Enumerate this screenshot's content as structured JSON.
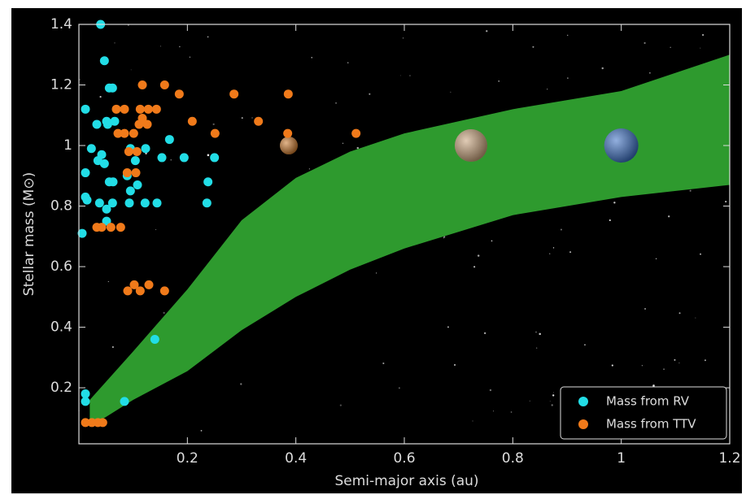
{
  "chart_data": {
    "type": "scatter",
    "xlabel": "Semi-major axis (au)",
    "ylabel": "Stellar mass (M⊙)",
    "xlim": [
      0,
      1.2
    ],
    "ylim": [
      0.015,
      1.4
    ],
    "xticks": [
      0.2,
      0.4,
      0.6,
      0.8,
      1.0,
      1.2
    ],
    "yticks": [
      0.2,
      0.4,
      0.6,
      0.8,
      1.0,
      1.2,
      1.4
    ],
    "legend": "lower right",
    "background": "#000000",
    "habitable_zone": {
      "color": "#2e9a2e",
      "x": [
        0.02,
        0.1,
        0.2,
        0.3,
        0.4,
        0.5,
        0.6,
        0.8,
        1.0,
        1.2
      ],
      "upper": [
        0.16,
        0.32,
        0.525,
        0.753,
        0.893,
        0.98,
        1.04,
        1.12,
        1.18,
        1.3
      ],
      "lower": [
        0.07,
        0.16,
        0.255,
        0.39,
        0.5,
        0.59,
        0.66,
        0.77,
        0.83,
        0.87
      ]
    },
    "planets": {
      "x": [
        0.387,
        0.723,
        1.0
      ],
      "values": [
        1.0,
        1.0,
        1.0
      ],
      "colors": [
        "#c9772a",
        "#c8a27a",
        "#3a6fc4"
      ]
    },
    "series": [
      {
        "name": "Mass from RV",
        "color": "#22dde6",
        "x": [
          0.04,
          0.047,
          0.012,
          0.056,
          0.062,
          0.033,
          0.051,
          0.053,
          0.066,
          0.023,
          0.042,
          0.035,
          0.047,
          0.012,
          0.056,
          0.063,
          0.012,
          0.015,
          0.038,
          0.051,
          0.062,
          0.051,
          0.006,
          0.095,
          0.104,
          0.089,
          0.095,
          0.108,
          0.093,
          0.122,
          0.144,
          0.123,
          0.153,
          0.167,
          0.194,
          0.25,
          0.238,
          0.236,
          0.14,
          0.084,
          0.012,
          0.012
        ],
        "values": [
          1.4,
          1.28,
          1.12,
          1.19,
          1.19,
          1.07,
          1.08,
          1.07,
          1.08,
          0.99,
          0.97,
          0.95,
          0.94,
          0.91,
          0.88,
          0.88,
          0.83,
          0.82,
          0.81,
          0.79,
          0.81,
          0.75,
          0.71,
          0.99,
          0.95,
          0.9,
          0.85,
          0.87,
          0.81,
          0.81,
          0.81,
          0.99,
          0.96,
          1.02,
          0.96,
          0.96,
          0.88,
          0.81,
          0.36,
          0.155,
          0.18,
          0.155
        ]
      },
      {
        "name": "Mass from TTV",
        "color": "#f07a1a",
        "x": [
          0.117,
          0.158,
          0.185,
          0.286,
          0.386,
          0.069,
          0.084,
          0.113,
          0.128,
          0.143,
          0.117,
          0.126,
          0.111,
          0.209,
          0.331,
          0.251,
          0.385,
          0.511,
          0.072,
          0.084,
          0.101,
          0.092,
          0.107,
          0.089,
          0.105,
          0.033,
          0.042,
          0.059,
          0.077,
          0.09,
          0.102,
          0.113,
          0.129,
          0.158,
          0.012,
          0.024,
          0.035,
          0.044
        ],
        "values": [
          1.2,
          1.2,
          1.17,
          1.17,
          1.17,
          1.12,
          1.12,
          1.12,
          1.12,
          1.12,
          1.09,
          1.07,
          1.07,
          1.08,
          1.08,
          1.04,
          1.04,
          1.04,
          1.04,
          1.04,
          1.04,
          0.98,
          0.98,
          0.91,
          0.91,
          0.73,
          0.73,
          0.73,
          0.73,
          0.52,
          0.54,
          0.52,
          0.54,
          0.52,
          0.085,
          0.085,
          0.085,
          0.085
        ]
      }
    ]
  }
}
